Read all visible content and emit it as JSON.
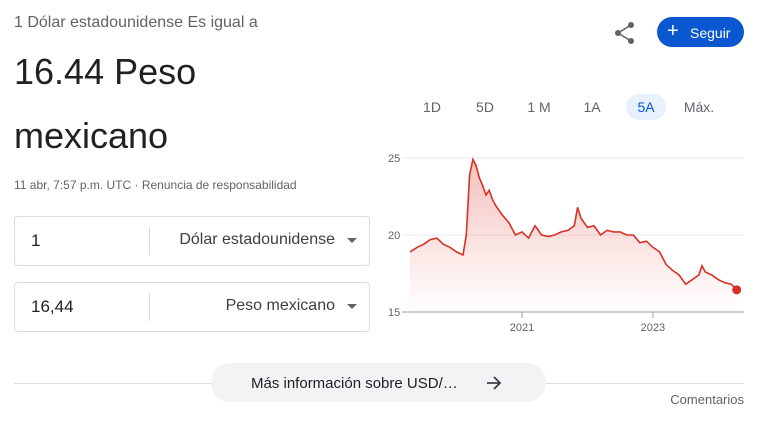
{
  "header": {
    "subtitle": "1 Dólar estadounidense Es igual a",
    "result": "16.44 Peso mexicano",
    "timestamp": "11 abr, 7:57 p.m. UTC · Renuncia de responsabilidad",
    "follow": "Seguir"
  },
  "converter": [
    {
      "amount": "1",
      "currency": "Dólar estadounidense"
    },
    {
      "amount": "16,44",
      "currency": "Peso mexicano"
    }
  ],
  "ranges": {
    "items": [
      "1D",
      "5D",
      "1 M",
      "1A",
      "5A",
      "Máx."
    ],
    "selected": 4
  },
  "chart_data": {
    "type": "line",
    "color": "#d93025",
    "x": [
      2019.29,
      2019.4,
      2019.5,
      2019.6,
      2019.7,
      2019.8,
      2019.9,
      2020.0,
      2020.1,
      2020.15,
      2020.2,
      2020.25,
      2020.3,
      2020.35,
      2020.4,
      2020.45,
      2020.5,
      2020.55,
      2020.6,
      2020.7,
      2020.8,
      2020.9,
      2021.0,
      2021.1,
      2021.2,
      2021.3,
      2021.4,
      2021.5,
      2021.6,
      2021.7,
      2021.8,
      2021.85,
      2021.9,
      2022.0,
      2022.1,
      2022.2,
      2022.3,
      2022.4,
      2022.5,
      2022.6,
      2022.7,
      2022.8,
      2022.9,
      2023.0,
      2023.1,
      2023.2,
      2023.3,
      2023.4,
      2023.5,
      2023.6,
      2023.7,
      2023.75,
      2023.8,
      2023.9,
      2024.0,
      2024.1,
      2024.2,
      2024.28
    ],
    "values": [
      18.9,
      19.2,
      19.4,
      19.7,
      19.8,
      19.4,
      19.2,
      18.9,
      18.7,
      20.0,
      23.9,
      24.9,
      24.5,
      23.7,
      23.2,
      22.6,
      22.9,
      22.3,
      21.9,
      21.3,
      20.8,
      20.0,
      20.2,
      19.8,
      20.6,
      20.0,
      19.9,
      20.0,
      20.2,
      20.3,
      20.6,
      21.8,
      21.1,
      20.5,
      20.6,
      20.0,
      20.3,
      20.2,
      20.2,
      20.0,
      20.0,
      19.5,
      19.6,
      19.2,
      18.9,
      18.1,
      17.7,
      17.4,
      16.8,
      17.1,
      17.4,
      18.0,
      17.6,
      17.4,
      17.1,
      16.9,
      16.8,
      16.44
    ],
    "xlim": [
      2019.29,
      2024.33
    ],
    "xticks": [
      2021,
      2023
    ],
    "ylim": [
      15,
      25
    ],
    "yticks": [
      15,
      20,
      25
    ],
    "grid": true
  },
  "footer": {
    "more": "Más información sobre USD/…",
    "feedback": "Comentarios"
  }
}
